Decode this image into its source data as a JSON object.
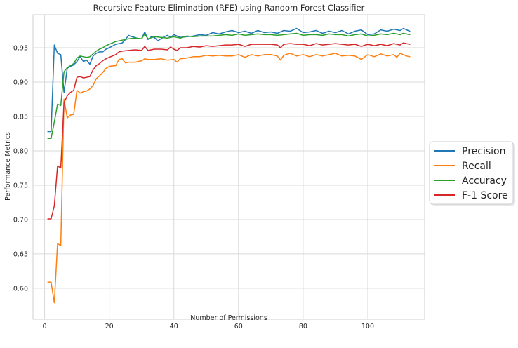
{
  "chart_data": {
    "type": "line",
    "title": "Recursive Feature Elimination (RFE) using Random Forest Classifier",
    "xlabel": "Number of Permissions",
    "ylabel": "Performance Metrics",
    "xlim": [
      -3.6,
      117.6
    ],
    "ylim": [
      0.555,
      0.998
    ],
    "xticks": [
      0,
      20,
      40,
      60,
      80,
      100
    ],
    "yticks": [
      0.6,
      0.65,
      0.7,
      0.75,
      0.8,
      0.85,
      0.9,
      0.95
    ],
    "xtick_labels": [
      "0",
      "20",
      "40",
      "60",
      "80",
      "100"
    ],
    "ytick_labels": [
      "0.60",
      "0.65",
      "0.70",
      "0.75",
      "0.80",
      "0.85",
      "0.90",
      "0.95"
    ],
    "grid": true,
    "legend_position": "right, outside",
    "series": [
      {
        "name": "Precision",
        "color": "#1f77b4",
        "points": [
          [
            1,
            0.828
          ],
          [
            2,
            0.828
          ],
          [
            3,
            0.954
          ],
          [
            4,
            0.942
          ],
          [
            5,
            0.94
          ],
          [
            6,
            0.885
          ],
          [
            7,
            0.92
          ],
          [
            8,
            0.923
          ],
          [
            9,
            0.925
          ],
          [
            10,
            0.93
          ],
          [
            11,
            0.937
          ],
          [
            12,
            0.93
          ],
          [
            13,
            0.932
          ],
          [
            14,
            0.926
          ],
          [
            15,
            0.938
          ],
          [
            16,
            0.942
          ],
          [
            17,
            0.944
          ],
          [
            18,
            0.944
          ],
          [
            19,
            0.948
          ],
          [
            20,
            0.95
          ],
          [
            22,
            0.955
          ],
          [
            24,
            0.957
          ],
          [
            25,
            0.962
          ],
          [
            26,
            0.968
          ],
          [
            27,
            0.966
          ],
          [
            28,
            0.965
          ],
          [
            29,
            0.963
          ],
          [
            30,
            0.963
          ],
          [
            31,
            0.973
          ],
          [
            32,
            0.962
          ],
          [
            33,
            0.966
          ],
          [
            34,
            0.965
          ],
          [
            35,
            0.96
          ],
          [
            36,
            0.963
          ],
          [
            37,
            0.966
          ],
          [
            38,
            0.968
          ],
          [
            39,
            0.965
          ],
          [
            40,
            0.969
          ],
          [
            42,
            0.965
          ],
          [
            44,
            0.966
          ],
          [
            46,
            0.967
          ],
          [
            48,
            0.969
          ],
          [
            50,
            0.968
          ],
          [
            52,
            0.972
          ],
          [
            54,
            0.97
          ],
          [
            56,
            0.973
          ],
          [
            58,
            0.975
          ],
          [
            60,
            0.972
          ],
          [
            62,
            0.974
          ],
          [
            64,
            0.971
          ],
          [
            66,
            0.975
          ],
          [
            68,
            0.972
          ],
          [
            70,
            0.973
          ],
          [
            72,
            0.971
          ],
          [
            74,
            0.975
          ],
          [
            76,
            0.974
          ],
          [
            78,
            0.978
          ],
          [
            80,
            0.972
          ],
          [
            82,
            0.973
          ],
          [
            84,
            0.975
          ],
          [
            86,
            0.971
          ],
          [
            88,
            0.974
          ],
          [
            90,
            0.972
          ],
          [
            92,
            0.975
          ],
          [
            94,
            0.97
          ],
          [
            96,
            0.974
          ],
          [
            98,
            0.976
          ],
          [
            100,
            0.969
          ],
          [
            102,
            0.97
          ],
          [
            104,
            0.976
          ],
          [
            106,
            0.974
          ],
          [
            108,
            0.977
          ],
          [
            110,
            0.975
          ],
          [
            111,
            0.978
          ],
          [
            113,
            0.974
          ]
        ]
      },
      {
        "name": "Recall",
        "color": "#ff7f0e",
        "points": [
          [
            1,
            0.609
          ],
          [
            2,
            0.609
          ],
          [
            3,
            0.579
          ],
          [
            4,
            0.665
          ],
          [
            5,
            0.662
          ],
          [
            6,
            0.875
          ],
          [
            7,
            0.848
          ],
          [
            8,
            0.852
          ],
          [
            9,
            0.853
          ],
          [
            10,
            0.888
          ],
          [
            11,
            0.884
          ],
          [
            12,
            0.886
          ],
          [
            13,
            0.887
          ],
          [
            14,
            0.89
          ],
          [
            15,
            0.895
          ],
          [
            16,
            0.905
          ],
          [
            17,
            0.909
          ],
          [
            18,
            0.914
          ],
          [
            19,
            0.92
          ],
          [
            20,
            0.923
          ],
          [
            22,
            0.924
          ],
          [
            23,
            0.933
          ],
          [
            24,
            0.934
          ],
          [
            25,
            0.928
          ],
          [
            26,
            0.929
          ],
          [
            28,
            0.929
          ],
          [
            30,
            0.931
          ],
          [
            31,
            0.934
          ],
          [
            32,
            0.933
          ],
          [
            34,
            0.933
          ],
          [
            36,
            0.934
          ],
          [
            38,
            0.932
          ],
          [
            40,
            0.933
          ],
          [
            41,
            0.929
          ],
          [
            42,
            0.934
          ],
          [
            44,
            0.935
          ],
          [
            46,
            0.937
          ],
          [
            48,
            0.937
          ],
          [
            50,
            0.939
          ],
          [
            52,
            0.938
          ],
          [
            54,
            0.939
          ],
          [
            56,
            0.938
          ],
          [
            58,
            0.938
          ],
          [
            60,
            0.94
          ],
          [
            62,
            0.936
          ],
          [
            64,
            0.94
          ],
          [
            66,
            0.938
          ],
          [
            68,
            0.94
          ],
          [
            70,
            0.94
          ],
          [
            72,
            0.938
          ],
          [
            73,
            0.932
          ],
          [
            74,
            0.939
          ],
          [
            76,
            0.942
          ],
          [
            78,
            0.938
          ],
          [
            80,
            0.94
          ],
          [
            82,
            0.937
          ],
          [
            84,
            0.94
          ],
          [
            86,
            0.938
          ],
          [
            88,
            0.94
          ],
          [
            90,
            0.942
          ],
          [
            92,
            0.938
          ],
          [
            94,
            0.939
          ],
          [
            96,
            0.938
          ],
          [
            98,
            0.933
          ],
          [
            100,
            0.94
          ],
          [
            102,
            0.937
          ],
          [
            104,
            0.941
          ],
          [
            106,
            0.938
          ],
          [
            108,
            0.94
          ],
          [
            109,
            0.936
          ],
          [
            110,
            0.942
          ],
          [
            112,
            0.938
          ],
          [
            113,
            0.937
          ]
        ]
      },
      {
        "name": "Accuracy",
        "color": "#2ca02c",
        "points": [
          [
            1,
            0.818
          ],
          [
            2,
            0.818
          ],
          [
            3,
            0.842
          ],
          [
            4,
            0.868
          ],
          [
            5,
            0.866
          ],
          [
            6,
            0.915
          ],
          [
            7,
            0.921
          ],
          [
            8,
            0.924
          ],
          [
            9,
            0.927
          ],
          [
            10,
            0.935
          ],
          [
            11,
            0.938
          ],
          [
            12,
            0.937
          ],
          [
            13,
            0.936
          ],
          [
            14,
            0.937
          ],
          [
            15,
            0.941
          ],
          [
            16,
            0.945
          ],
          [
            17,
            0.948
          ],
          [
            18,
            0.95
          ],
          [
            19,
            0.953
          ],
          [
            20,
            0.955
          ],
          [
            22,
            0.959
          ],
          [
            24,
            0.961
          ],
          [
            26,
            0.963
          ],
          [
            28,
            0.964
          ],
          [
            30,
            0.963
          ],
          [
            31,
            0.97
          ],
          [
            32,
            0.963
          ],
          [
            34,
            0.966
          ],
          [
            36,
            0.965
          ],
          [
            38,
            0.964
          ],
          [
            40,
            0.966
          ],
          [
            42,
            0.964
          ],
          [
            44,
            0.967
          ],
          [
            46,
            0.966
          ],
          [
            48,
            0.967
          ],
          [
            50,
            0.967
          ],
          [
            52,
            0.967
          ],
          [
            54,
            0.968
          ],
          [
            56,
            0.969
          ],
          [
            58,
            0.968
          ],
          [
            60,
            0.97
          ],
          [
            62,
            0.968
          ],
          [
            64,
            0.969
          ],
          [
            66,
            0.97
          ],
          [
            68,
            0.969
          ],
          [
            70,
            0.969
          ],
          [
            72,
            0.968
          ],
          [
            74,
            0.969
          ],
          [
            76,
            0.97
          ],
          [
            78,
            0.971
          ],
          [
            80,
            0.968
          ],
          [
            82,
            0.969
          ],
          [
            84,
            0.969
          ],
          [
            86,
            0.968
          ],
          [
            88,
            0.97
          ],
          [
            90,
            0.969
          ],
          [
            92,
            0.969
          ],
          [
            94,
            0.967
          ],
          [
            96,
            0.969
          ],
          [
            98,
            0.97
          ],
          [
            100,
            0.967
          ],
          [
            102,
            0.968
          ],
          [
            104,
            0.97
          ],
          [
            106,
            0.969
          ],
          [
            108,
            0.971
          ],
          [
            110,
            0.969
          ],
          [
            111,
            0.971
          ],
          [
            113,
            0.969
          ]
        ]
      },
      {
        "name": "F-1 Score",
        "color": "#d62728",
        "points": [
          [
            1,
            0.701
          ],
          [
            2,
            0.701
          ],
          [
            3,
            0.72
          ],
          [
            4,
            0.778
          ],
          [
            5,
            0.775
          ],
          [
            6,
            0.87
          ],
          [
            7,
            0.88
          ],
          [
            8,
            0.885
          ],
          [
            9,
            0.888
          ],
          [
            10,
            0.907
          ],
          [
            11,
            0.908
          ],
          [
            12,
            0.906
          ],
          [
            13,
            0.907
          ],
          [
            14,
            0.908
          ],
          [
            15,
            0.918
          ],
          [
            16,
            0.924
          ],
          [
            17,
            0.927
          ],
          [
            18,
            0.931
          ],
          [
            19,
            0.934
          ],
          [
            20,
            0.936
          ],
          [
            22,
            0.94
          ],
          [
            23,
            0.944
          ],
          [
            24,
            0.945
          ],
          [
            26,
            0.946
          ],
          [
            28,
            0.947
          ],
          [
            30,
            0.946
          ],
          [
            31,
            0.952
          ],
          [
            32,
            0.946
          ],
          [
            34,
            0.948
          ],
          [
            36,
            0.948
          ],
          [
            38,
            0.947
          ],
          [
            39,
            0.951
          ],
          [
            40,
            0.948
          ],
          [
            41,
            0.946
          ],
          [
            42,
            0.95
          ],
          [
            44,
            0.95
          ],
          [
            46,
            0.952
          ],
          [
            48,
            0.951
          ],
          [
            50,
            0.953
          ],
          [
            52,
            0.952
          ],
          [
            54,
            0.953
          ],
          [
            56,
            0.954
          ],
          [
            58,
            0.954
          ],
          [
            60,
            0.955
          ],
          [
            62,
            0.952
          ],
          [
            64,
            0.955
          ],
          [
            66,
            0.955
          ],
          [
            68,
            0.955
          ],
          [
            70,
            0.955
          ],
          [
            72,
            0.954
          ],
          [
            73,
            0.95
          ],
          [
            74,
            0.955
          ],
          [
            76,
            0.956
          ],
          [
            78,
            0.955
          ],
          [
            80,
            0.955
          ],
          [
            82,
            0.953
          ],
          [
            84,
            0.956
          ],
          [
            86,
            0.954
          ],
          [
            88,
            0.955
          ],
          [
            90,
            0.956
          ],
          [
            92,
            0.955
          ],
          [
            94,
            0.954
          ],
          [
            96,
            0.955
          ],
          [
            98,
            0.952
          ],
          [
            100,
            0.955
          ],
          [
            102,
            0.953
          ],
          [
            104,
            0.955
          ],
          [
            106,
            0.953
          ],
          [
            108,
            0.956
          ],
          [
            110,
            0.954
          ],
          [
            111,
            0.957
          ],
          [
            113,
            0.955
          ]
        ]
      }
    ]
  }
}
